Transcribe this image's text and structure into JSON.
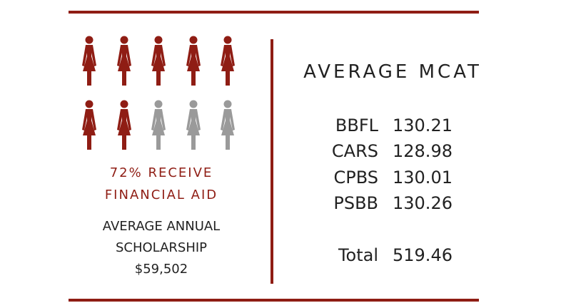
{
  "colors": {
    "accent": "#8f1d14",
    "filled_icon": "#8f1d14",
    "empty_icon": "#9a9a9a"
  },
  "financial_aid": {
    "icons_total": 10,
    "icons_filled": 7,
    "line1": "72% RECEIVE",
    "line2": "FINANCIAL AID"
  },
  "scholarship": {
    "line1": "AVERAGE ANNUAL",
    "line2": "SCHOLARSHIP",
    "amount": "$59,502"
  },
  "mcat": {
    "title": "AVERAGE MCAT",
    "scores": [
      {
        "label": "BBFL",
        "value": "130.21"
      },
      {
        "label": "CARS",
        "value": "128.98"
      },
      {
        "label": "CPBS",
        "value": "130.01"
      },
      {
        "label": "PSBB",
        "value": "130.26"
      }
    ],
    "total": {
      "label": "Total",
      "value": "519.46"
    }
  }
}
